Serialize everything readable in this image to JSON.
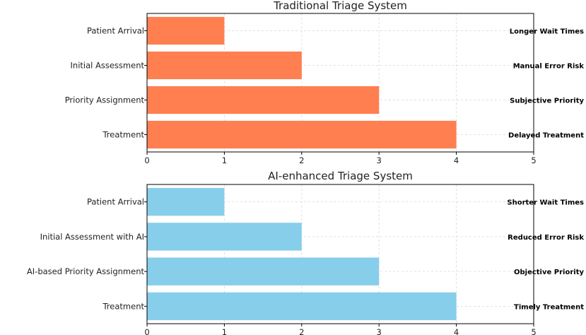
{
  "chart_data": [
    {
      "type": "bar",
      "orientation": "horizontal",
      "title": "Traditional Triage System",
      "categories": [
        "Patient Arrival",
        "Initial Assessment",
        "Priority Assignment",
        "Treatment"
      ],
      "values": [
        1,
        2,
        3,
        4
      ],
      "annotations": [
        "Longer Wait Times",
        "Manual Error Risk",
        "Subjective Priority",
        "Delayed Treatment"
      ],
      "xlim": [
        0,
        5
      ],
      "xticks": [
        0,
        1,
        2,
        3,
        4,
        5
      ],
      "color": "#FF7F50",
      "grid": true
    },
    {
      "type": "bar",
      "orientation": "horizontal",
      "title": "AI-enhanced Triage System",
      "categories": [
        "Patient Arrival",
        "Initial Assessment with AI",
        "AI-based Priority Assignment",
        "Treatment"
      ],
      "values": [
        1,
        2,
        3,
        4
      ],
      "annotations": [
        "Shorter Wait Times",
        "Reduced Error Risk",
        "Objective Priority",
        "Timely Treatment"
      ],
      "xlim": [
        0,
        5
      ],
      "xticks": [
        0,
        1,
        2,
        3,
        4,
        5
      ],
      "color": "#87CEEB",
      "grid": true
    }
  ]
}
